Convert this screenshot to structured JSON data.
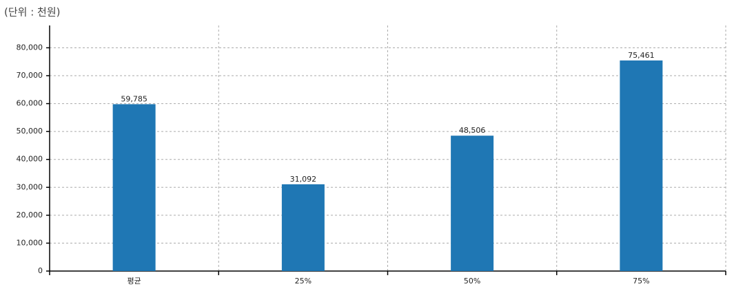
{
  "chart_data": {
    "type": "bar",
    "title": "(단위 : 천원)",
    "categories": [
      "평균",
      "25%",
      "50%",
      "75%"
    ],
    "values": [
      59785,
      31092,
      48506,
      75461
    ],
    "value_labels": [
      "59,785",
      "31,092",
      "48,506",
      "75,461"
    ],
    "color": "#1f77b4",
    "ylim": [
      0,
      88000
    ],
    "yticks": [
      0,
      {
        "value": 10000,
        "label": "10,000"
      },
      {
        "value": 20000,
        "label": "20,000"
      },
      {
        "value": 30000,
        "label": "30,000"
      },
      {
        "value": 40000,
        "label": "40,000"
      },
      {
        "value": 50000,
        "label": "50,000"
      },
      {
        "value": 60000,
        "label": "60,000"
      },
      {
        "value": 70000,
        "label": "70,000"
      },
      {
        "value": 80000,
        "label": "80,000"
      }
    ],
    "grid": true
  }
}
